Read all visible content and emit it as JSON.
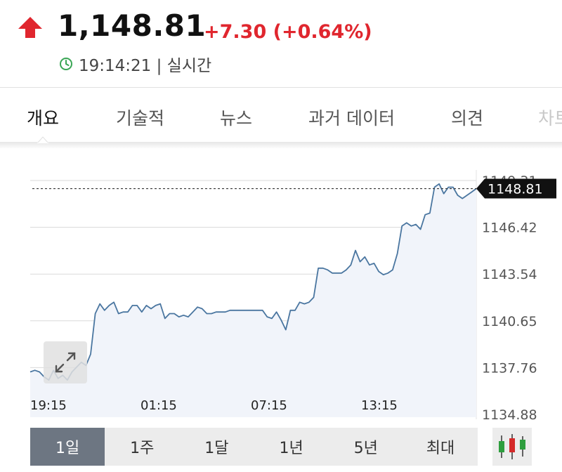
{
  "quote": {
    "price": "1,148.81",
    "change": "+7.30 (+0.64%)",
    "time": "19:14:21 | 실시간",
    "direction_color": "#e0262e",
    "clock_color": "#3aa655"
  },
  "tabs": [
    {
      "label": "개요"
    },
    {
      "label": "기술적"
    },
    {
      "label": "뉴스"
    },
    {
      "label": "과거 데이터"
    },
    {
      "label": "의견"
    },
    {
      "label": "차트"
    }
  ],
  "chart_data": {
    "type": "line",
    "x_tick_labels": [
      "19:15",
      "01:15",
      "07:15",
      "13:15"
    ],
    "y_tick_labels": [
      "1149.31",
      "1146.42",
      "1143.54",
      "1140.65",
      "1137.76",
      "1134.88"
    ],
    "ylim": [
      1134.88,
      1149.31
    ],
    "current_value": 1148.81,
    "current_label": "1148.81",
    "line_color": "#4a76a0",
    "grid": true,
    "values": [
      1137.5,
      1137.6,
      1137.5,
      1137.2,
      1137.0,
      1137.6,
      1137.1,
      1137.3,
      1137.0,
      1137.5,
      1137.8,
      1138.1,
      1137.9,
      1138.6,
      1141.1,
      1141.7,
      1141.3,
      1141.6,
      1141.8,
      1141.1,
      1141.2,
      1141.2,
      1141.6,
      1141.6,
      1141.2,
      1141.6,
      1141.4,
      1141.6,
      1141.7,
      1140.8,
      1141.1,
      1141.1,
      1140.9,
      1141.0,
      1140.9,
      1141.2,
      1141.5,
      1141.4,
      1141.1,
      1141.1,
      1141.2,
      1141.2,
      1141.2,
      1141.3,
      1141.3,
      1141.3,
      1141.3,
      1141.3,
      1141.3,
      1141.3,
      1141.3,
      1140.9,
      1140.8,
      1141.2,
      1140.7,
      1140.1,
      1141.3,
      1141.3,
      1141.8,
      1141.7,
      1141.8,
      1142.1,
      1143.9,
      1143.9,
      1143.8,
      1143.6,
      1143.6,
      1143.6,
      1143.8,
      1144.1,
      1145.0,
      1144.3,
      1144.6,
      1144.1,
      1144.2,
      1143.7,
      1143.5,
      1143.6,
      1143.8,
      1144.8,
      1146.5,
      1146.7,
      1146.5,
      1146.6,
      1146.3,
      1147.2,
      1147.3,
      1148.9,
      1149.1,
      1148.5,
      1148.9,
      1148.9,
      1148.4,
      1148.2,
      1148.4,
      1148.6,
      1148.81
    ]
  },
  "range_buttons": [
    {
      "label": "1일"
    },
    {
      "label": "1주"
    },
    {
      "label": "1달"
    },
    {
      "label": "1년"
    },
    {
      "label": "5년"
    },
    {
      "label": "최대"
    }
  ],
  "icons": {
    "arrow": "up-arrow-icon",
    "clock": "clock-icon",
    "expand": "expand-icon",
    "candles": "candlestick-icon"
  }
}
